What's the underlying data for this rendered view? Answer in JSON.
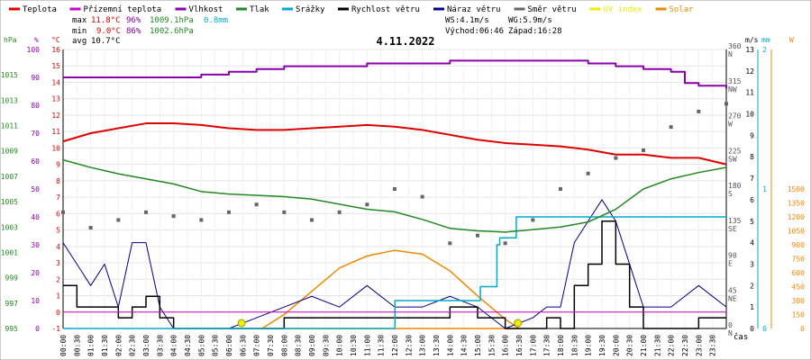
{
  "chart_data": {
    "type": "line",
    "title": "4.11.2022",
    "legend": [
      {
        "name": "Teplota",
        "color": "#dd0000"
      },
      {
        "name": "Přízemní teplota",
        "color": "#cc00cc"
      },
      {
        "name": "Vlhkost",
        "color": "#8800aa"
      },
      {
        "name": "Tlak",
        "color": "#228822"
      },
      {
        "name": "Srážky",
        "color": "#00aacc"
      },
      {
        "name": "Rychlost větru",
        "color": "#000000"
      },
      {
        "name": "Náraz větru",
        "color": "#000088"
      },
      {
        "name": "Směr větru",
        "color": "#666666"
      },
      {
        "name": "UV index",
        "color": "#eeee00"
      },
      {
        "name": "Solar",
        "color": "#ee8800"
      }
    ],
    "stats": {
      "max": {
        "label": "max",
        "temp": "11.8°C",
        "hum": "96%",
        "press": "1009.1hPa",
        "rain": "0.8mm"
      },
      "min": {
        "label": "min",
        "temp": "9.0°C",
        "hum": "86%",
        "press": "1002.6hPa"
      },
      "avg": {
        "label": "avg",
        "temp": "10.7°C"
      },
      "ws": "WS:4.1m/s",
      "wg": "WG:5.9m/s",
      "sunrise": "Východ:06:46",
      "sunset": "Západ:16:28"
    },
    "axes": {
      "hpa": {
        "unit": "hPa",
        "ticks": [
          "995",
          "997",
          "999",
          "1001",
          "1003",
          "1005",
          "1007",
          "1009",
          "1011",
          "1013",
          "1015"
        ],
        "range": [
          995,
          1017
        ],
        "color": "#228822"
      },
      "percent": {
        "unit": "%",
        "ticks": [
          "0",
          "10",
          "20",
          "30",
          "40",
          "50",
          "60",
          "70",
          "80",
          "90",
          "100"
        ],
        "range": [
          0,
          100
        ],
        "color": "#8800aa"
      },
      "celsius": {
        "unit": "°C",
        "ticks": [
          "-1",
          "0",
          "1",
          "2",
          "3",
          "4",
          "5",
          "6",
          "7",
          "8",
          "9",
          "10",
          "11",
          "12",
          "13",
          "14",
          "15",
          "16"
        ],
        "range": [
          -1,
          16
        ],
        "color": "#dd0000"
      },
      "direction": {
        "ticks": [
          "0",
          "45",
          "90",
          "135",
          "180",
          "225",
          "270",
          "315",
          "360"
        ],
        "dirs": [
          "N",
          "NE",
          "E",
          "SE",
          "S",
          "SW",
          "W",
          "NW",
          "N"
        ],
        "range": [
          0,
          360
        ]
      },
      "wind": {
        "unit": "m/s",
        "ticks": [
          "0",
          "1",
          "2",
          "3",
          "4",
          "5",
          "6",
          "7",
          "8",
          "9",
          "10",
          "11",
          "12",
          "13"
        ],
        "range": [
          0,
          13
        ]
      },
      "rain": {
        "unit": "mm",
        "ticks": [
          "0",
          "1",
          "2"
        ],
        "range": [
          0,
          2
        ],
        "color": "#00aacc"
      },
      "solar": {
        "unit": "W",
        "ticks": [
          "0",
          "150",
          "300",
          "450",
          "600",
          "750",
          "900",
          "1050",
          "1200",
          "1350",
          "1500"
        ],
        "range": [
          0,
          3000
        ],
        "color": "#ee8800"
      },
      "time": {
        "label": "čas",
        "ticks": [
          "00:00",
          "00:30",
          "01:00",
          "01:30",
          "02:00",
          "02:30",
          "03:00",
          "03:30",
          "04:00",
          "04:30",
          "05:00",
          "05:30",
          "06:00",
          "06:30",
          "07:00",
          "07:30",
          "08:00",
          "08:30",
          "09:00",
          "09:30",
          "10:00",
          "10:30",
          "11:00",
          "11:30",
          "12:00",
          "12:30",
          "13:00",
          "13:30",
          "14:00",
          "14:30",
          "15:00",
          "15:30",
          "16:00",
          "16:30",
          "17:00",
          "17:30",
          "18:00",
          "18:30",
          "19:00",
          "19:30",
          "20:00",
          "20:30",
          "21:00",
          "21:30",
          "22:00",
          "22:30",
          "23:00",
          "23:30"
        ]
      }
    },
    "series": {
      "temperature": {
        "name": "Teplota",
        "x": [
          0,
          1,
          2,
          3,
          4,
          5,
          6,
          7,
          8,
          9,
          10,
          11,
          12,
          13,
          14,
          15,
          16,
          17,
          18,
          19,
          20,
          21,
          22,
          23,
          24
        ],
        "values": [
          10.4,
          10.9,
          11.2,
          11.5,
          11.5,
          11.4,
          11.2,
          11.1,
          11.1,
          11.2,
          11.3,
          11.4,
          11.3,
          11.1,
          10.8,
          10.5,
          10.3,
          10.2,
          10.1,
          9.9,
          9.6,
          9.6,
          9.4,
          9.4,
          9.0
        ]
      },
      "ground_temperature": {
        "name": "Přízemní teplota",
        "x": [
          0,
          24
        ],
        "values": [
          0.0,
          0.0
        ]
      },
      "humidity": {
        "name": "Vlhkost",
        "x": [
          0,
          1,
          2,
          3,
          4,
          5,
          6,
          7,
          8,
          9,
          10,
          11,
          12,
          13,
          14,
          15,
          16,
          17,
          18,
          19,
          20,
          21,
          22,
          22.5,
          23,
          24
        ],
        "values": [
          90,
          90,
          90,
          90,
          90,
          91,
          92,
          93,
          94,
          94,
          94,
          95,
          95,
          95,
          96,
          96,
          96,
          96,
          96,
          95,
          94,
          93,
          92,
          88,
          87,
          86
        ]
      },
      "pressure": {
        "name": "Tlak",
        "x": [
          0,
          1,
          2,
          3,
          4,
          5,
          6,
          7,
          8,
          9,
          10,
          11,
          12,
          13,
          14,
          15,
          16,
          17,
          18,
          19,
          20,
          21,
          22,
          23,
          24
        ],
        "values": [
          1008.3,
          1007.7,
          1007.2,
          1006.8,
          1006.4,
          1005.8,
          1005.6,
          1005.5,
          1005.4,
          1005.2,
          1004.8,
          1004.4,
          1004.2,
          1003.6,
          1002.9,
          1002.7,
          1002.6,
          1002.8,
          1003.0,
          1003.4,
          1004.4,
          1006.0,
          1006.8,
          1007.3,
          1007.7
        ]
      },
      "rain": {
        "name": "Srážky",
        "x": [
          0,
          12.0,
          12.01,
          14.9,
          15.1,
          15.7,
          15.8,
          16.4,
          16.5,
          24
        ],
        "values": [
          0,
          0,
          0.2,
          0.2,
          0.3,
          0.6,
          0.65,
          0.8,
          0.8,
          0.8
        ]
      },
      "wind_speed": {
        "name": "Rychlost větru",
        "x": [
          0,
          0.5,
          1,
          1.5,
          2,
          2.5,
          3,
          3.5,
          4,
          5,
          6,
          7,
          8,
          9,
          10,
          11,
          12,
          13,
          14,
          15,
          16,
          17,
          17.5,
          18,
          18.5,
          19,
          19.5,
          20,
          20.5,
          21,
          22,
          23,
          24
        ],
        "values": [
          2,
          1,
          1,
          1,
          0.5,
          1,
          1.5,
          0.5,
          0,
          0,
          0,
          0,
          0.5,
          0.5,
          0.5,
          0.5,
          0.5,
          0.5,
          1,
          0.5,
          0,
          0,
          0.5,
          0,
          2,
          3,
          5,
          3,
          1,
          0,
          0,
          0.5,
          0.5
        ]
      },
      "wind_gust": {
        "name": "Náraz větru",
        "x": [
          0,
          0.5,
          1,
          1.5,
          2,
          2.5,
          3,
          3.5,
          4,
          5,
          6,
          7,
          8,
          9,
          10,
          11,
          12,
          13,
          14,
          15,
          16,
          17,
          17.5,
          18,
          18.5,
          19,
          19.5,
          20,
          20.5,
          21,
          22,
          23,
          24
        ],
        "values": [
          4,
          3,
          2,
          3,
          1,
          4,
          4,
          1,
          0,
          0,
          0,
          0.5,
          1,
          1.5,
          1,
          2,
          1,
          1,
          1.5,
          1,
          0,
          0.5,
          1,
          1,
          4,
          5,
          6,
          5,
          3,
          1,
          1,
          2,
          1
        ]
      },
      "wind_direction": {
        "name": "Směr větru",
        "x": [
          0,
          1,
          2,
          3,
          4,
          5,
          6,
          7,
          8,
          9,
          10,
          11,
          12,
          13,
          14,
          15,
          16,
          17,
          18,
          19,
          20,
          21,
          22,
          23,
          24
        ],
        "values": [
          150,
          130,
          140,
          150,
          145,
          140,
          150,
          160,
          150,
          140,
          150,
          160,
          180,
          170,
          110,
          120,
          110,
          140,
          180,
          200,
          220,
          230,
          260,
          280,
          290
        ]
      },
      "uv": {
        "name": "UV index",
        "x": [
          6.46,
          16.46
        ],
        "values": [
          0,
          0
        ]
      },
      "solar": {
        "name": "Solar",
        "x": [
          7.2,
          8,
          9,
          10,
          11,
          12,
          13,
          14,
          15,
          16,
          16.5
        ],
        "values": [
          0,
          150,
          400,
          650,
          780,
          840,
          800,
          620,
          350,
          100,
          0
        ]
      }
    }
  }
}
